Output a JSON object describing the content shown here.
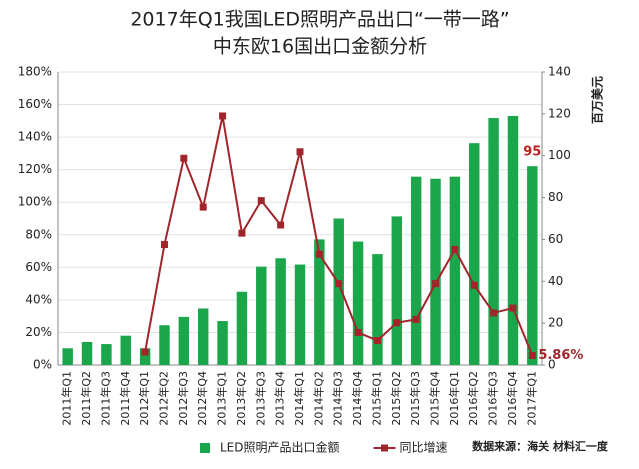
{
  "chart_data": {
    "type": "bar-line",
    "title": "2017年Q1我国LED照明产品出口“一带一路”",
    "subtitle": "中东欧16国出口金额分析",
    "y2_label": "百万美元",
    "source": "数据来源：海关 材料汇一度",
    "categories": [
      "2011年Q1",
      "2011年Q2",
      "2011年Q3",
      "2011年Q4",
      "2012年Q1",
      "2012年Q2",
      "2012年Q3",
      "2012年Q4",
      "2013年Q1",
      "2013年Q2",
      "2013年Q3",
      "2013年Q4",
      "2014年Q1",
      "2014年Q2",
      "2014年Q3",
      "2014年Q4",
      "2015年Q1",
      "2015年Q2",
      "2015年Q3",
      "2015年Q4",
      "2016年Q1",
      "2016年Q2",
      "2016年Q3",
      "2016年Q4",
      "2017年Q1"
    ],
    "series": [
      {
        "name": "LED照明产品出口金额",
        "type": "bar",
        "axis": "y2",
        "color": "#1ca64c",
        "values": [
          8,
          11,
          10,
          14,
          8,
          19,
          23,
          27,
          21,
          35,
          47,
          51,
          48,
          60,
          70,
          59,
          53,
          71,
          90,
          89,
          90,
          106,
          118,
          119,
          95
        ],
        "value_labels": [
          null,
          null,
          null,
          null,
          null,
          null,
          null,
          null,
          null,
          null,
          null,
          null,
          null,
          null,
          null,
          null,
          null,
          null,
          null,
          null,
          null,
          null,
          null,
          null,
          "95"
        ]
      },
      {
        "name": "同比增速",
        "type": "line",
        "axis": "y",
        "color": "#a0262b",
        "values": [
          null,
          null,
          null,
          null,
          8,
          74,
          127,
          97,
          153,
          81,
          101,
          86,
          131,
          68,
          50,
          20,
          15,
          26,
          28,
          50,
          71,
          49,
          32,
          35,
          5.86
        ],
        "value_labels": [
          null,
          null,
          null,
          null,
          null,
          null,
          null,
          null,
          null,
          null,
          null,
          null,
          null,
          null,
          null,
          null,
          null,
          null,
          null,
          null,
          null,
          null,
          null,
          null,
          "5.86%"
        ]
      }
    ],
    "ylim": [
      0,
      180
    ],
    "yticks": [
      {
        "value": 0,
        "label": "0%"
      },
      {
        "value": 20,
        "label": "20%"
      },
      {
        "value": 40,
        "label": "40%"
      },
      {
        "value": 60,
        "label": "60%"
      },
      {
        "value": 80,
        "label": "80%"
      },
      {
        "value": 100,
        "label": "100%"
      },
      {
        "value": 120,
        "label": "120%"
      },
      {
        "value": 140,
        "label": "140%"
      },
      {
        "value": 160,
        "label": "160%"
      },
      {
        "value": 180,
        "label": "180%"
      }
    ],
    "y2lim": [
      0,
      140
    ],
    "y2ticks": [
      0,
      20,
      40,
      60,
      80,
      100,
      120,
      140
    ],
    "grid": true
  }
}
